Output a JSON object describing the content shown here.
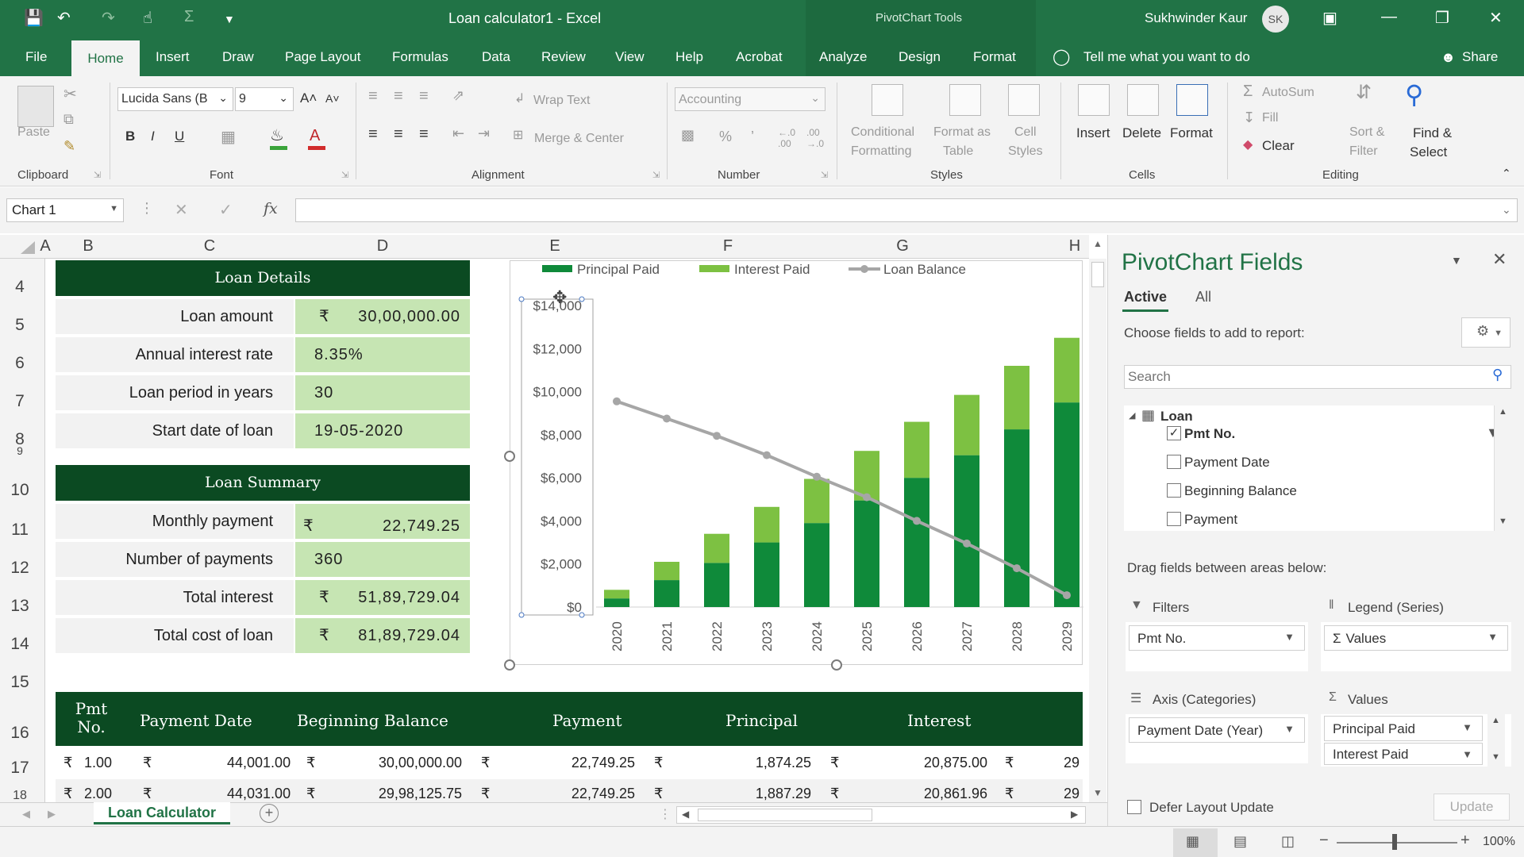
{
  "window": {
    "doc_title": "Loan calculator1  -  Excel",
    "context_title": "PivotChart Tools",
    "user_name": "Sukhwinder Kaur",
    "user_initials": "SK"
  },
  "tabs": [
    "File",
    "Home",
    "Insert",
    "Draw",
    "Page Layout",
    "Formulas",
    "Data",
    "Review",
    "View",
    "Help",
    "Acrobat",
    "Analyze",
    "Design",
    "Format"
  ],
  "tell_me": "Tell me what you want to do",
  "share": "Share",
  "ribbon": {
    "clipboard": {
      "label": "Clipboard",
      "paste": "Paste"
    },
    "font": {
      "label": "Font",
      "name": "Lucida Sans (B",
      "size": "9",
      "bold": "B",
      "italic": "I",
      "underline": "U"
    },
    "alignment": {
      "label": "Alignment",
      "wrap_text": "Wrap Text",
      "merge_center": "Merge & Center"
    },
    "number": {
      "label": "Number",
      "format": "Accounting"
    },
    "styles": {
      "label": "Styles",
      "conditional": "Conditional",
      "conditional2": "Formatting",
      "format_as": "Format as",
      "format_as2": "Table",
      "cell": "Cell",
      "cell2": "Styles"
    },
    "cells": {
      "label": "Cells",
      "insert": "Insert",
      "delete": "Delete",
      "format": "Format"
    },
    "editing": {
      "label": "Editing",
      "autosum": "AutoSum",
      "fill": "Fill",
      "clear": "Clear",
      "sort": "Sort &",
      "sort2": "Filter",
      "find": "Find &",
      "find2": "Select"
    }
  },
  "formula_bar": {
    "name_box": "Chart 1",
    "fx": "fx",
    "value": ""
  },
  "columns": [
    "A",
    "B",
    "C",
    "D",
    "E",
    "F",
    "G",
    "H"
  ],
  "rows": [
    "4",
    "5",
    "6",
    "7",
    "8",
    "9",
    "10",
    "11",
    "12",
    "13",
    "14",
    "15",
    "16",
    "17",
    "18"
  ],
  "loan_details": {
    "title": "Loan Details",
    "items": [
      {
        "label": "Loan amount",
        "currency": "₹",
        "value": "30,00,000.00"
      },
      {
        "label": "Annual interest rate",
        "currency": "",
        "value": "8.35%"
      },
      {
        "label": "Loan period in years",
        "currency": "",
        "value": "30"
      },
      {
        "label": "Start date of loan",
        "currency": "",
        "value": "19-05-2020"
      }
    ]
  },
  "loan_summary": {
    "title": "Loan Summary",
    "items": [
      {
        "label": "Monthly payment",
        "currency": "₹",
        "value": "22,749.25"
      },
      {
        "label": "Number of payments",
        "currency": "",
        "value": "360"
      },
      {
        "label": "Total interest",
        "currency": "₹",
        "value": "51,89,729.04"
      },
      {
        "label": "Total cost of loan",
        "currency": "₹",
        "value": "81,89,729.04"
      }
    ]
  },
  "schedule": {
    "headers": [
      "Pmt No.",
      "Payment Date",
      "Beginning Balance",
      "Payment",
      "Principal",
      "Interest"
    ],
    "rows": [
      [
        "₹",
        "1.00",
        "₹",
        "44,001.00",
        "₹",
        "30,00,000.00",
        "₹",
        "22,749.25",
        "₹",
        "1,874.25",
        "₹",
        "20,875.00",
        "₹",
        "29"
      ],
      [
        "₹",
        "2.00",
        "₹",
        "44,031.00",
        "₹",
        "29,98,125.75",
        "₹",
        "22,749.25",
        "₹",
        "1,887.29",
        "₹",
        "20,861.96",
        "₹",
        "29"
      ]
    ]
  },
  "chart_data": {
    "type": "bar",
    "stacked": true,
    "categories": [
      "2020",
      "2021",
      "2022",
      "2023",
      "2024",
      "2025",
      "2026",
      "2027",
      "2028",
      "2029"
    ],
    "series": [
      {
        "name": "Principal Paid",
        "type": "bar",
        "color": "#0f8a3a",
        "values": [
          400,
          1250,
          2050,
          3000,
          3900,
          4950,
          6000,
          7050,
          8250,
          9500
        ]
      },
      {
        "name": "Interest Paid",
        "type": "bar",
        "color": "#7dc142",
        "values": [
          400,
          850,
          1350,
          1650,
          2050,
          2300,
          2600,
          2800,
          2950,
          3000
        ]
      },
      {
        "name": "Loan Balance",
        "type": "line",
        "color": "#a6a6a6",
        "values": [
          9550,
          8750,
          7950,
          7050,
          6050,
          5100,
          4000,
          2950,
          1800,
          550
        ]
      }
    ],
    "ylim": [
      0,
      14000
    ],
    "yticks": [
      "$0",
      "$2,000",
      "$4,000",
      "$6,000",
      "$8,000",
      "$10,000",
      "$12,000",
      "$14,000"
    ],
    "legend_position": "top",
    "grid": false
  },
  "pane": {
    "title": "PivotChart Fields",
    "tab_active": "Active",
    "tab_all": "All",
    "choose": "Choose fields to add to report:",
    "search_placeholder": "Search",
    "table_name": "Loan",
    "fields": [
      {
        "name": "Pmt No.",
        "checked": true
      },
      {
        "name": "Payment Date",
        "checked": false
      },
      {
        "name": "Beginning Balance",
        "checked": false
      },
      {
        "name": "Payment",
        "checked": false
      }
    ],
    "drag_text": "Drag fields between areas below:",
    "filters_label": "Filters",
    "filters_value": "Pmt No.",
    "legend_label": "Legend (Series)",
    "legend_value": "Values",
    "axis_label": "Axis (Categories)",
    "axis_value": "Payment Date (Year)",
    "values_label": "Values",
    "values_items": [
      "Principal Paid",
      "Interest Paid"
    ],
    "defer": "Defer Layout Update",
    "update": "Update"
  },
  "sheet_tab": "Loan Calculator",
  "status": {
    "zoom": "100%"
  }
}
